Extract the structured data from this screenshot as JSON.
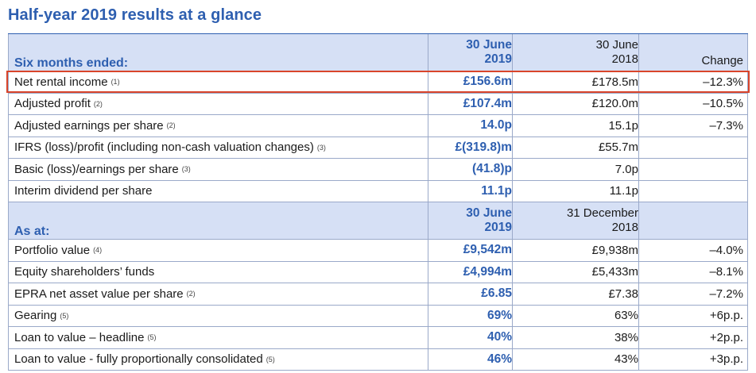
{
  "title": "Half-year 2019 results at a glance",
  "section1": {
    "label": "Six months ended:",
    "col_current": [
      "30 June",
      "2019"
    ],
    "col_previous": [
      "30 June",
      "2018"
    ],
    "col_change": "Change",
    "rows": [
      {
        "label": "Net rental income",
        "note": "(1)",
        "current": "£156.6m",
        "previous": "£178.5m",
        "change": "–12.3%"
      },
      {
        "label": "Adjusted profit",
        "note": "(2)",
        "current": "£107.4m",
        "previous": "£120.0m",
        "change": "–10.5%"
      },
      {
        "label": "Adjusted earnings per share",
        "note": "(2)",
        "current": "14.0p",
        "previous": "15.1p",
        "change": "–7.3%"
      },
      {
        "label": "IFRS (loss)/profit (including non-cash valuation changes)",
        "note": "(3)",
        "current": "£(319.8)m",
        "previous": "£55.7m",
        "change": ""
      },
      {
        "label": "Basic (loss)/earnings per share",
        "note": "(3)",
        "current": "(41.8)p",
        "previous": "7.0p",
        "change": ""
      },
      {
        "label": "Interim dividend per share",
        "note": "",
        "current": "11.1p",
        "previous": "11.1p",
        "change": ""
      }
    ]
  },
  "section2": {
    "label": "As at:",
    "col_current": [
      "30 June",
      "2019"
    ],
    "col_previous": [
      "31 December",
      "2018"
    ],
    "rows": [
      {
        "label": "Portfolio value",
        "note": "(4)",
        "current": "£9,542m",
        "previous": "£9,938m",
        "change": "–4.0%"
      },
      {
        "label": "Equity shareholders’ funds",
        "note": "",
        "current": "£4,994m",
        "previous": "£5,433m",
        "change": "–8.1%"
      },
      {
        "label": "EPRA net asset value per share",
        "note": "(2)",
        "current": "£6.85",
        "previous": "£7.38",
        "change": "–7.2%"
      },
      {
        "label": "Gearing",
        "note": "(5)",
        "current": "69%",
        "previous": "63%",
        "change": "+6p.p."
      },
      {
        "label": "Loan to value – headline",
        "note": "(5)",
        "current": "40%",
        "previous": "38%",
        "change": "+2p.p."
      },
      {
        "label": "Loan to value - fully proportionally consolidated",
        "note": "(5)",
        "current": "46%",
        "previous": "43%",
        "change": "+3p.p."
      }
    ]
  },
  "colors": {
    "accent": "#2e5fb0",
    "header_bg": "#d6e0f5",
    "highlight": "#d9452b"
  }
}
